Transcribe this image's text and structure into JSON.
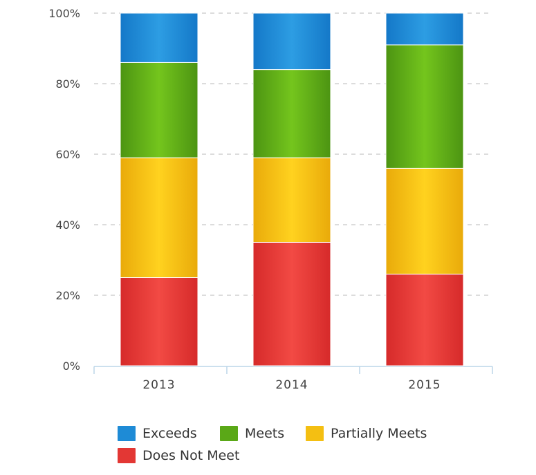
{
  "chart_data": {
    "type": "bar",
    "stacked": true,
    "title": "",
    "xlabel": "",
    "ylabel": "",
    "ylim": [
      0,
      100
    ],
    "y_ticks": [
      "0%",
      "20%",
      "40%",
      "60%",
      "80%",
      "100%"
    ],
    "y_tick_values": [
      0,
      20,
      40,
      60,
      80,
      100
    ],
    "categories": [
      "2013",
      "2014",
      "2015"
    ],
    "series": [
      {
        "name": "Does Not Meet",
        "values": [
          25,
          35,
          26
        ],
        "color": "#d62a2a",
        "color_light": "#f24a44"
      },
      {
        "name": "Partially Meets",
        "values": [
          34,
          24,
          30
        ],
        "color": "#e9aa0a",
        "color_light": "#ffd21f"
      },
      {
        "name": "Meets",
        "values": [
          27,
          25,
          35
        ],
        "color": "#4c9412",
        "color_light": "#74c51d"
      },
      {
        "name": "Exceeds",
        "values": [
          14,
          16,
          9
        ],
        "color": "#1478c8",
        "color_light": "#2d9de3"
      }
    ],
    "grid": true,
    "legend_position": "bottom"
  },
  "legend": {
    "items": [
      {
        "label": "Exceeds",
        "color": "#1e8bd6"
      },
      {
        "label": "Meets",
        "color": "#5aa817"
      },
      {
        "label": "Partially Meets",
        "color": "#f4bf12"
      },
      {
        "label": "Does Not Meet",
        "color": "#e33734"
      }
    ]
  }
}
